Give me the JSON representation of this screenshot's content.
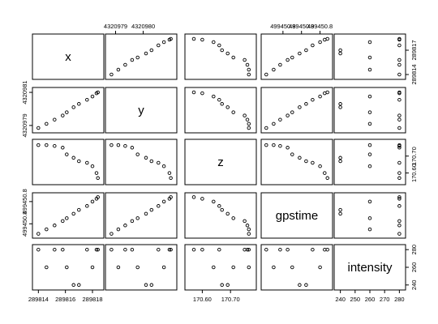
{
  "chart_data": {
    "type": "scatter-matrix",
    "variables": [
      {
        "name": "x",
        "range": [
          289813.8,
          289818.6
        ]
      },
      {
        "name": "y",
        "range": [
          4320978.75,
          4320981.1
        ]
      },
      {
        "name": "z",
        "range": [
          170.55,
          170.78
        ]
      },
      {
        "name": "gpstime",
        "range": [
          499450.78,
          499450.85
        ]
      },
      {
        "name": "intensity",
        "range": [
          238,
          282
        ]
      }
    ],
    "points": [
      {
        "x": 289814.0,
        "y": 4320978.85,
        "z": 170.765,
        "gpstime": 499450.782,
        "intensity": 280
      },
      {
        "x": 289814.6,
        "y": 4320979.1,
        "z": 170.765,
        "gpstime": 499450.79,
        "intensity": 260
      },
      {
        "x": 289815.2,
        "y": 4320979.35,
        "z": 170.76,
        "gpstime": 499450.797,
        "intensity": 280
      },
      {
        "x": 289815.8,
        "y": 4320979.6,
        "z": 170.75,
        "gpstime": 499450.805,
        "intensity": 280
      },
      {
        "x": 289816.1,
        "y": 4320979.8,
        "z": 170.71,
        "gpstime": 499450.81,
        "intensity": 260
      },
      {
        "x": 289816.6,
        "y": 4320980.1,
        "z": 170.69,
        "gpstime": 499450.818,
        "intensity": 240
      },
      {
        "x": 289817.0,
        "y": 4320980.3,
        "z": 170.67,
        "gpstime": 499450.825,
        "intensity": 240
      },
      {
        "x": 289817.6,
        "y": 4320980.55,
        "z": 170.66,
        "gpstime": 499450.832,
        "intensity": 280
      },
      {
        "x": 289818.0,
        "y": 4320980.75,
        "z": 170.64,
        "gpstime": 499450.84,
        "intensity": 260
      },
      {
        "x": 289818.3,
        "y": 4320980.95,
        "z": 170.6,
        "gpstime": 499450.845,
        "intensity": 280
      },
      {
        "x": 289818.4,
        "y": 4320981.0,
        "z": 170.57,
        "gpstime": 499450.848,
        "intensity": 280
      }
    ],
    "ticks": {
      "x": [
        {
          "value": 289814.0,
          "label": "289814"
        },
        {
          "value": 289816.0,
          "label": "289816"
        },
        {
          "value": 289818.0,
          "label": "289818"
        }
      ],
      "y": [
        {
          "value": 4320979.0,
          "label": "4320979"
        },
        {
          "value": 4320980.0,
          "label": "4320980"
        },
        {
          "value": 4320981.0,
          "label": "4320981"
        }
      ],
      "z": [
        {
          "value": 170.6,
          "label": "170.60"
        },
        {
          "value": 170.7,
          "label": "170.70"
        }
      ],
      "gpstime": [
        {
          "value": 499450.8,
          "label": "499450.8"
        },
        {
          "value": 499450.82,
          "label": "499450.8"
        },
        {
          "value": 499450.84,
          "label": "499450.8"
        }
      ],
      "intensity": [
        {
          "value": 240,
          "label": "240"
        },
        {
          "value": 250,
          "label": "250"
        },
        {
          "value": 260,
          "label": "260"
        },
        {
          "value": 270,
          "label": "270"
        },
        {
          "value": 280,
          "label": "280"
        }
      ]
    },
    "outer_axes": {
      "top": [
        {
          "variable": "y",
          "ticks": [
            {
              "value": 4320979.0,
              "label": "4320979"
            },
            {
              "value": 4320980.0,
              "label": "4320980"
            }
          ]
        },
        {
          "variable": "gpstime",
          "ticks": [
            {
              "value": 499450.8,
              "label": "499450.8"
            },
            {
              "value": 499450.82,
              "label": "499450.8"
            },
            {
              "value": 499450.84,
              "label": "499450.8"
            }
          ]
        }
      ],
      "bottom": [
        {
          "variable": "x",
          "ticks": [
            {
              "value": 289814.0,
              "label": "289814"
            },
            {
              "value": 289816.0,
              "label": "289816"
            },
            {
              "value": 289818.0,
              "label": "289818"
            }
          ]
        },
        {
          "variable": "z",
          "ticks": [
            {
              "value": 170.6,
              "label": "170.60"
            },
            {
              "value": 170.7,
              "label": "170.70"
            }
          ]
        },
        {
          "variable": "intensity",
          "ticks": [
            {
              "value": 240,
              "label": "240"
            },
            {
              "value": 250,
              "label": "250"
            },
            {
              "value": 260,
              "label": "260"
            },
            {
              "value": 270,
              "label": "270"
            },
            {
              "value": 280,
              "label": "280"
            }
          ]
        }
      ],
      "left": [
        {
          "variable": "y",
          "ticks": [
            {
              "value": 4320979.0,
              "label": "4320979"
            },
            {
              "value": 4320981.0,
              "label": "4320981"
            }
          ]
        },
        {
          "variable": "gpstime",
          "ticks": [
            {
              "value": 499450.8,
              "label": "499450.8"
            },
            {
              "value": 499450.84,
              "label": "499450.8"
            }
          ]
        }
      ],
      "right": [
        {
          "variable": "x",
          "ticks": [
            {
              "value": 289814.0,
              "label": "289814"
            },
            {
              "value": 289817.0,
              "label": "289817"
            }
          ]
        },
        {
          "variable": "z",
          "ticks": [
            {
              "value": 170.6,
              "label": "170.60"
            },
            {
              "value": 170.7,
              "label": "170.70"
            }
          ]
        },
        {
          "variable": "intensity",
          "ticks": [
            {
              "value": 240,
              "label": "240"
            },
            {
              "value": 260,
              "label": "260"
            },
            {
              "value": 280,
              "label": "280"
            }
          ]
        }
      ]
    },
    "point_style": "open-circle",
    "grid": false,
    "colors": {
      "points": "#000000",
      "frame": "#000000",
      "background": "#ffffff"
    }
  }
}
